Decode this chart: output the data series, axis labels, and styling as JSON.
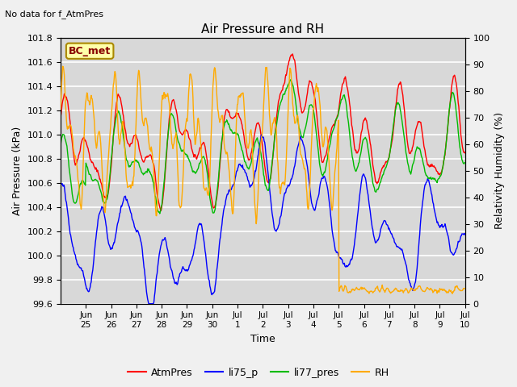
{
  "title": "Air Pressure and RH",
  "top_left_text": "No data for f_AtmPres",
  "annotation_box": "BC_met",
  "xlabel": "Time",
  "ylabel_left": "Air Pressure (kPa)",
  "ylabel_right": "Relativity Humidity (%)",
  "ylim_left": [
    99.6,
    101.8
  ],
  "ylim_right": [
    0,
    100
  ],
  "yticks_left": [
    99.6,
    99.8,
    100.0,
    100.2,
    100.4,
    100.6,
    100.8,
    101.0,
    101.2,
    101.4,
    101.6,
    101.8
  ],
  "yticks_right": [
    0,
    10,
    20,
    30,
    40,
    50,
    60,
    70,
    80,
    90,
    100
  ],
  "xtick_labels": [
    "Jun\n25",
    "Jun\n26",
    "Jun\n27",
    "Jun\n28",
    "Jun\n29",
    "Jun\n30",
    "Jul\n1",
    "Jul\n2",
    "Jul\n3",
    "Jul\n4",
    "Jul\n5",
    "Jul\n6",
    "Jul\n7",
    "Jul\n8",
    "Jul\n9",
    "Jul\n10"
  ],
  "legend_labels": [
    "AtmPres",
    "li75_p",
    "li77_pres",
    "RH"
  ],
  "legend_colors": [
    "#ff0000",
    "#0000ff",
    "#00bb00",
    "#ffaa00"
  ],
  "plot_bg_color": "#d8d8d8",
  "grid_color": "#ffffff",
  "fig_bg_color": "#f0f0f0"
}
